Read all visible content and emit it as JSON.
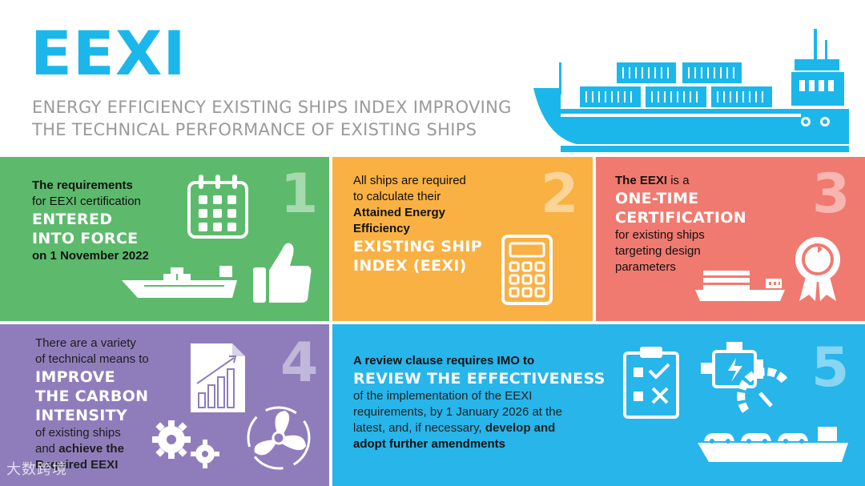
{
  "header": {
    "title": "EEXI",
    "subtitle_line1": "ENERGY EFFICIENCY EXISTING SHIPS INDEX IMPROVING",
    "subtitle_line2": "THE TECHNICAL PERFORMANCE OF EXISTING SHIPS"
  },
  "panels": [
    {
      "number": "1",
      "line1": "The requirements",
      "line2": "for EEXI certification",
      "highlight1": "ENTERED",
      "highlight2": "INTO FORCE",
      "line3": "on 1 November 2022"
    },
    {
      "number": "2",
      "line1": "All ships are required",
      "line2": "to calculate their",
      "bold1": "Attained Energy",
      "bold2": "Efficiency",
      "highlight1": "EXISTING SHIP",
      "highlight2": "INDEX (EEXI)"
    },
    {
      "number": "3",
      "line1_bold": "The EEXI",
      "line1_rest": " is a",
      "highlight1": "ONE-TIME",
      "highlight2": "CERTIFICATION",
      "line2": "for existing ships",
      "line3": "targeting design",
      "line4": "parameters"
    },
    {
      "number": "4",
      "line1": "There are a  variety",
      "line2": "of technical means to",
      "highlight1": "IMPROVE",
      "highlight2": "THE CARBON",
      "highlight3": "INTENSITY",
      "line3": "of existing ships",
      "line4_start": "and ",
      "line4_bold": "achieve the",
      "line5": "Required EEXI"
    },
    {
      "number": "5",
      "line1": "A review clause requires IMO to",
      "highlight1": "REVIEW THE EFFECTIVENESS",
      "line2": "of the implementation of the EEXI",
      "line3": "requirements, by 1 January 2026 at the",
      "line4_start": "latest, and, if necessary, ",
      "line4_bold": "develop and",
      "line5": "adopt further amendments"
    }
  ],
  "watermark": "大数跨境",
  "colors": {
    "accent_blue": "#1cb7ea",
    "green": "#5dba6c",
    "orange": "#f9b144",
    "salmon": "#f07a70",
    "purple": "#8f7dbb",
    "blue": "#27b5ea"
  }
}
